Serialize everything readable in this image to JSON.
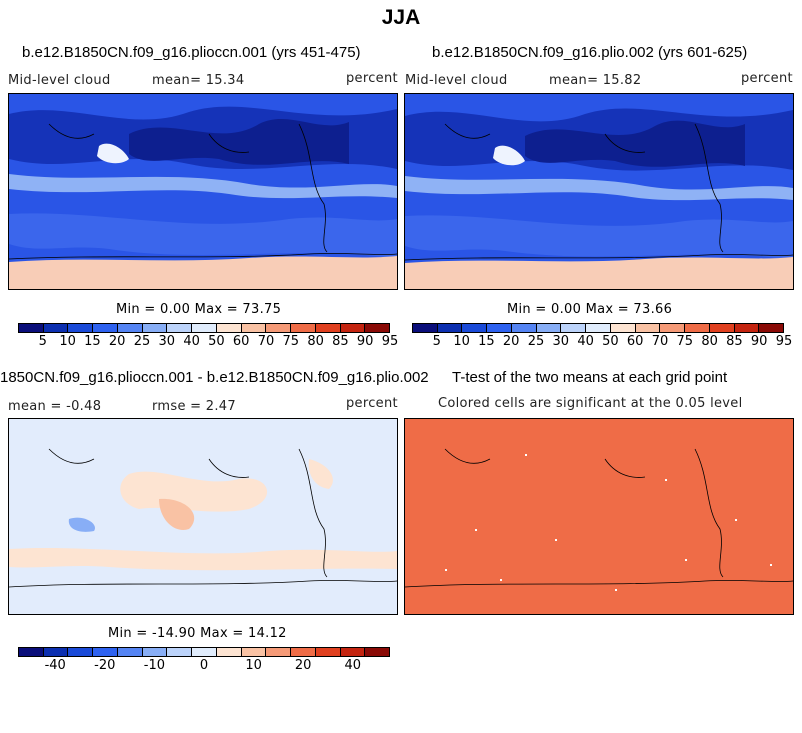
{
  "title": "JJA",
  "panels": [
    {
      "title": "b.e12.B1850CN.f09_g16.plioccn.001 (yrs 451-475)",
      "left_label": "Mid-level cloud",
      "mean_label": "mean=  15.34",
      "units": "percent",
      "minmax": "Min =   0.00 Max =  73.75"
    },
    {
      "title": "b.e12.B1850CN.f09_g16.plio.002 (yrs 601-625)",
      "left_label": "Mid-level cloud",
      "mean_label": "mean=  15.82",
      "units": "percent",
      "minmax": "Min =   0.00 Max =  73.66"
    },
    {
      "title": "1850CN.f09_g16.plioccn.001 - b.e12.B1850CN.f09_g16.plio.002",
      "left_label": "mean =  -0.48",
      "mean_label": "rmse =   2.47",
      "units": "percent",
      "minmax": "Min = -14.90 Max =  14.12"
    },
    {
      "title": "T-test of the two means at each grid point",
      "left_label": "Colored cells are significant at the 0.05 level"
    }
  ],
  "colorbar_abs": {
    "colors": [
      "#0a0e7a",
      "#0c2fb0",
      "#1a4ad8",
      "#2e62f0",
      "#5584f3",
      "#88aef6",
      "#bcd3fa",
      "#e0ecfc",
      "#fde4d2",
      "#f9c2a4",
      "#f59a77",
      "#ef6c47",
      "#e0401f",
      "#c42410",
      "#8a0a06"
    ],
    "labels": [
      "5",
      "10",
      "15",
      "20",
      "25",
      "30",
      "40",
      "50",
      "60",
      "70",
      "75",
      "80",
      "85",
      "90",
      "95"
    ]
  },
  "colorbar_diff": {
    "colors": [
      "#0a0e7a",
      "#0c2fb0",
      "#1a4ad8",
      "#2e62f0",
      "#5584f3",
      "#88aef6",
      "#bcd3fa",
      "#e0ecfc",
      "#fde4d2",
      "#f9c2a4",
      "#f59a77",
      "#ef6c47",
      "#e0401f",
      "#c42410",
      "#8a0a06"
    ],
    "labels": [
      "-40",
      "-20",
      "-10",
      "0",
      "10",
      "20",
      "40"
    ]
  }
}
